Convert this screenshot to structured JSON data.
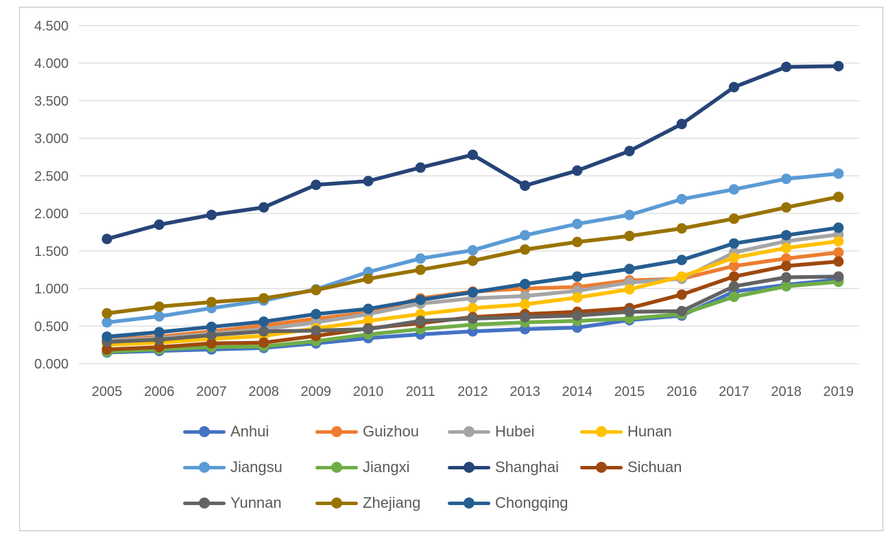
{
  "chart_data": {
    "type": "line",
    "title": "",
    "xlabel": "",
    "ylabel": "",
    "x": [
      2005,
      2006,
      2007,
      2008,
      2009,
      2010,
      2011,
      2012,
      2013,
      2014,
      2015,
      2016,
      2017,
      2018,
      2019
    ],
    "x_tick_labels": [
      "2005",
      "2006",
      "2007",
      "2008",
      "2009",
      "2010",
      "2011",
      "2012",
      "2013",
      "2014",
      "2015",
      "2016",
      "2017",
      "2018",
      "2019"
    ],
    "y_axis": {
      "min": 0.0,
      "max": 4.5,
      "step": 0.5,
      "tick_labels": [
        "0.000",
        "0.500",
        "1.000",
        "1.500",
        "2.000",
        "2.500",
        "3.000",
        "3.500",
        "4.000",
        "4.500"
      ]
    },
    "grid": "horizontal",
    "legend_position": "bottom",
    "marker": "circle",
    "series": [
      {
        "name": "Anhui",
        "color": "#4472C4",
        "values": [
          0.15,
          0.17,
          0.19,
          0.21,
          0.27,
          0.34,
          0.39,
          0.43,
          0.46,
          0.48,
          0.58,
          0.64,
          0.96,
          1.05,
          1.12
        ]
      },
      {
        "name": "Guizhou",
        "color": "#ED7D31",
        "values": [
          0.32,
          0.36,
          0.43,
          0.51,
          0.6,
          0.68,
          0.87,
          0.96,
          1.0,
          1.02,
          1.11,
          1.13,
          1.3,
          1.4,
          1.48
        ]
      },
      {
        "name": "Hubei",
        "color": "#A5A5A5",
        "values": [
          0.31,
          0.34,
          0.4,
          0.46,
          0.55,
          0.66,
          0.8,
          0.87,
          0.9,
          0.97,
          1.08,
          1.13,
          1.48,
          1.63,
          1.72
        ]
      },
      {
        "name": "Hunan",
        "color": "#FFC000",
        "values": [
          0.25,
          0.28,
          0.33,
          0.37,
          0.47,
          0.57,
          0.66,
          0.74,
          0.79,
          0.88,
          0.99,
          1.16,
          1.41,
          1.54,
          1.63
        ]
      },
      {
        "name": "Jiangsu",
        "color": "#5B9BD5",
        "values": [
          0.55,
          0.63,
          0.74,
          0.84,
          0.99,
          1.22,
          1.4,
          1.51,
          1.71,
          1.86,
          1.98,
          2.19,
          2.32,
          2.46,
          2.53
        ]
      },
      {
        "name": "Jiangxi",
        "color": "#70AD47",
        "values": [
          0.16,
          0.19,
          0.22,
          0.23,
          0.3,
          0.39,
          0.46,
          0.52,
          0.55,
          0.57,
          0.6,
          0.66,
          0.89,
          1.03,
          1.09
        ]
      },
      {
        "name": "Shanghai",
        "color": "#264478",
        "values": [
          1.66,
          1.85,
          1.98,
          2.08,
          2.38,
          2.43,
          2.61,
          2.78,
          2.37,
          2.57,
          2.83,
          3.19,
          3.68,
          3.95,
          3.96
        ]
      },
      {
        "name": "Sichuan",
        "color": "#9E480E",
        "values": [
          0.19,
          0.22,
          0.27,
          0.28,
          0.37,
          0.47,
          0.54,
          0.62,
          0.66,
          0.69,
          0.74,
          0.92,
          1.16,
          1.3,
          1.36
        ]
      },
      {
        "name": "Yunnan",
        "color": "#636363",
        "values": [
          0.29,
          0.32,
          0.38,
          0.43,
          0.44,
          0.46,
          0.57,
          0.6,
          0.62,
          0.64,
          0.69,
          0.7,
          1.03,
          1.15,
          1.16
        ]
      },
      {
        "name": "Zhejiang",
        "color": "#997300",
        "values": [
          0.67,
          0.76,
          0.82,
          0.87,
          0.98,
          1.13,
          1.25,
          1.37,
          1.52,
          1.62,
          1.7,
          1.8,
          1.93,
          2.08,
          2.22
        ]
      },
      {
        "name": "Chongqing",
        "color": "#255E91",
        "values": [
          0.36,
          0.42,
          0.49,
          0.56,
          0.66,
          0.73,
          0.85,
          0.95,
          1.06,
          1.16,
          1.26,
          1.38,
          1.6,
          1.71,
          1.81
        ]
      }
    ],
    "legend_rows": [
      [
        "Anhui",
        "Guizhou",
        "Hubei",
        "Hunan"
      ],
      [
        "Jiangsu",
        "Jiangxi",
        "Shanghai",
        "Sichuan"
      ],
      [
        "Yunnan",
        "Zhejiang",
        "Chongqing"
      ]
    ],
    "colors": {
      "gridline": "#D9D9D9",
      "tick_text": "#595959",
      "border": "#BDBDBD",
      "background": "#FFFFFF"
    }
  }
}
